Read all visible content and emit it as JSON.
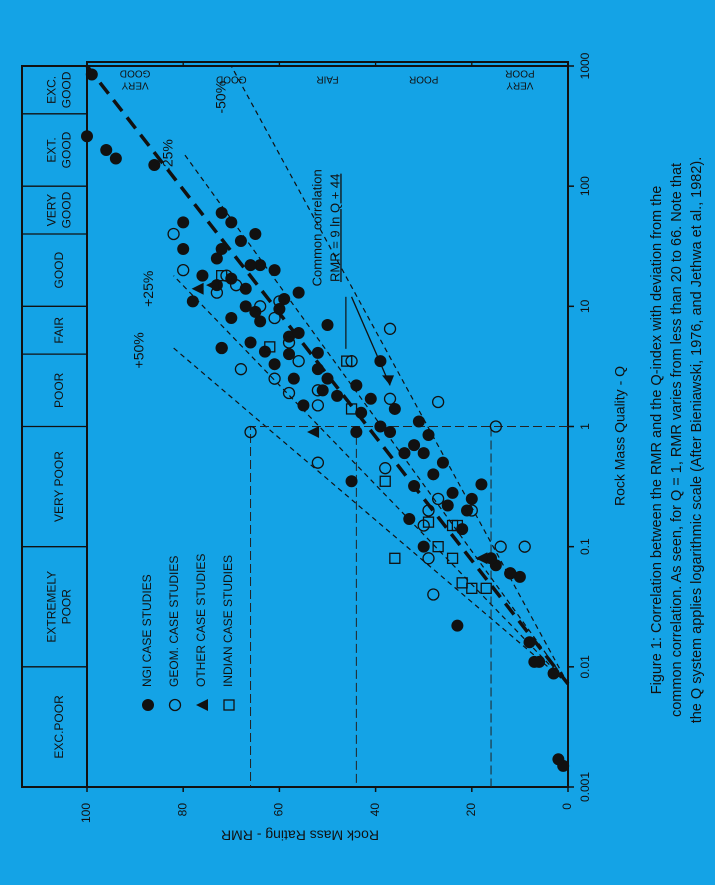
{
  "background": "#14a3e6",
  "caption": [
    "Figure 1:  Correlation between the RMR and the Q-index with deviation from the",
    "common correlation. As seen, for Q = 1, RMR varies from less than 20 to 66. Note that",
    "the Q system applies logarithmic scale (After Bieniawski, 1976, and Jethwa et al., 1982)."
  ],
  "chart_data": {
    "type": "scatter",
    "x_scale": "log",
    "xlabel": "Rock Mass Quality - Q",
    "ylabel": "Rock Mass Rating - RMR",
    "xlim": [
      0.001,
      1000
    ],
    "ylim": [
      0,
      100
    ],
    "x_ticks": [
      {
        "value": 0.001,
        "label": "0.001"
      },
      {
        "value": 0.01,
        "label": "0.01"
      },
      {
        "value": 0.1,
        "label": "0.1"
      },
      {
        "value": 1,
        "label": "1"
      },
      {
        "value": 10,
        "label": "10"
      },
      {
        "value": 100,
        "label": "100"
      },
      {
        "value": 1000,
        "label": "1000"
      }
    ],
    "y_ticks": [
      {
        "value": 0,
        "label": "0"
      },
      {
        "value": 20,
        "label": "20"
      },
      {
        "value": 40,
        "label": "40"
      },
      {
        "value": 60,
        "label": "60"
      },
      {
        "value": 80,
        "label": "80"
      },
      {
        "value": 100,
        "label": "100"
      }
    ],
    "q_classes": [
      {
        "from": 0.001,
        "to": 0.01,
        "label": [
          "EXC.POOR"
        ]
      },
      {
        "from": 0.01,
        "to": 0.1,
        "label": [
          "EXTREMELY",
          "POOR"
        ]
      },
      {
        "from": 0.1,
        "to": 1,
        "label": [
          "VERY POOR"
        ]
      },
      {
        "from": 1,
        "to": 4,
        "label": [
          "POOR"
        ]
      },
      {
        "from": 4,
        "to": 10,
        "label": [
          "FAIR"
        ]
      },
      {
        "from": 10,
        "to": 40,
        "label": [
          "GOOD"
        ]
      },
      {
        "from": 40,
        "to": 100,
        "label": [
          "VERY",
          "GOOD"
        ]
      },
      {
        "from": 100,
        "to": 400,
        "label": [
          "EXT.",
          "GOOD"
        ]
      },
      {
        "from": 400,
        "to": 1000,
        "label": [
          "EXC.",
          "GOOD"
        ]
      }
    ],
    "rmr_classes": [
      {
        "from": 0,
        "to": 20,
        "label": [
          "VERY",
          "POOR"
        ]
      },
      {
        "from": 20,
        "to": 40,
        "label": [
          "POOR"
        ]
      },
      {
        "from": 40,
        "to": 60,
        "label": [
          "FAIR"
        ]
      },
      {
        "from": 60,
        "to": 80,
        "label": [
          "GOOD"
        ]
      },
      {
        "from": 80,
        "to": 100,
        "label": [
          "VERY",
          "GOOD"
        ]
      }
    ],
    "lines": [
      {
        "label": "+50%",
        "points": [
          [
            0.0072,
            0
          ],
          [
            4.5,
            82
          ]
        ],
        "style": "dash-fine"
      },
      {
        "label": "+25%",
        "points": [
          [
            0.0072,
            0
          ],
          [
            18,
            82
          ]
        ],
        "style": "dash-fine"
      },
      {
        "label": "",
        "points": [
          [
            0.0072,
            0
          ],
          [
            1000,
            100
          ]
        ],
        "style": "dash-bold"
      },
      {
        "label": "-25%",
        "points": [
          [
            0.0072,
            0
          ],
          [
            190,
            80
          ]
        ],
        "style": "dash-fine"
      },
      {
        "label": "-50%",
        "points": [
          [
            0.0072,
            0
          ],
          [
            1000,
            70
          ]
        ],
        "style": "dash-fine"
      }
    ],
    "line_labels": [
      {
        "text": "+50%",
        "q": 4.3,
        "rmr": 89
      },
      {
        "text": "+25%",
        "q": 14,
        "rmr": 87
      },
      {
        "text": "-25%",
        "q": 180,
        "rmr": 83
      },
      {
        "text": "-50%",
        "q": 550,
        "rmr": 72
      }
    ],
    "guides": [
      {
        "q": 1,
        "rmr": 66
      },
      {
        "q": 1,
        "rmr": 44
      },
      {
        "q": 1,
        "rmr": 16
      }
    ],
    "correlation": {
      "text": [
        "Common correlation",
        "RMR = 9 ln Q + 44"
      ],
      "label_q": 45,
      "label_rmr": 52,
      "arrow_from": {
        "q": 12,
        "rmr": 45
      },
      "arrow_to": {
        "q": 2.2,
        "rmr": 37
      }
    },
    "legend": {
      "placement": "bottom-left",
      "entries": [
        {
          "marker": "filled-circle",
          "label": "NGI CASE STUDIES"
        },
        {
          "marker": "open-circle",
          "label": "GEOM. CASE STUDIES"
        },
        {
          "marker": "triangle",
          "label": "OTHER CASE STUDIES"
        },
        {
          "marker": "square",
          "label": "INDIAN CASE STUDIES"
        }
      ]
    },
    "series": [
      {
        "name": "NGI CASE STUDIES",
        "marker": "filled-circle",
        "points": [
          [
            0.0015,
            1
          ],
          [
            0.0017,
            2
          ],
          [
            0.0088,
            3
          ],
          [
            0.011,
            6
          ],
          [
            0.011,
            7
          ],
          [
            0.016,
            8
          ],
          [
            0.022,
            23
          ],
          [
            0.056,
            10
          ],
          [
            0.06,
            12
          ],
          [
            0.07,
            15
          ],
          [
            0.08,
            16
          ],
          [
            0.1,
            30
          ],
          [
            0.14,
            22
          ],
          [
            0.17,
            33
          ],
          [
            0.2,
            21
          ],
          [
            0.22,
            25
          ],
          [
            0.25,
            20
          ],
          [
            0.35,
            45
          ],
          [
            0.28,
            24
          ],
          [
            0.32,
            32
          ],
          [
            0.33,
            18
          ],
          [
            0.4,
            28
          ],
          [
            0.5,
            26
          ],
          [
            0.6,
            30
          ],
          [
            0.6,
            34
          ],
          [
            0.7,
            32
          ],
          [
            0.85,
            29
          ],
          [
            0.9,
            37
          ],
          [
            0.9,
            44
          ],
          [
            1.0,
            39
          ],
          [
            1.1,
            31
          ],
          [
            1.3,
            43
          ],
          [
            1.4,
            36
          ],
          [
            1.5,
            55
          ],
          [
            1.7,
            41
          ],
          [
            1.8,
            48
          ],
          [
            2.0,
            51
          ],
          [
            2.2,
            44
          ],
          [
            2.5,
            57
          ],
          [
            2.5,
            50
          ],
          [
            3.0,
            52
          ],
          [
            3.3,
            61
          ],
          [
            3.5,
            39
          ],
          [
            4.0,
            58
          ],
          [
            4.1,
            52
          ],
          [
            4.5,
            72
          ],
          [
            4.2,
            63
          ],
          [
            5.0,
            66
          ],
          [
            5.6,
            58
          ],
          [
            6,
            56
          ],
          [
            7,
            50
          ],
          [
            7.5,
            64
          ],
          [
            8,
            70
          ],
          [
            9,
            65
          ],
          [
            9.5,
            60
          ],
          [
            10,
            67
          ],
          [
            11,
            78
          ],
          [
            11.5,
            59
          ],
          [
            13,
            56
          ],
          [
            14,
            67
          ],
          [
            15,
            73
          ],
          [
            17,
            70
          ],
          [
            18,
            76
          ],
          [
            20,
            61
          ],
          [
            22,
            64
          ],
          [
            22,
            66
          ],
          [
            25,
            73
          ],
          [
            30,
            72
          ],
          [
            30,
            80
          ],
          [
            35,
            68
          ],
          [
            40,
            65
          ],
          [
            50,
            70
          ],
          [
            60,
            72
          ],
          [
            50,
            80
          ],
          [
            150,
            86
          ],
          [
            170,
            94
          ],
          [
            200,
            96
          ],
          [
            260,
            100
          ],
          [
            850,
            99
          ]
        ]
      },
      {
        "name": "GEOM. CASE STUDIES",
        "marker": "open-circle",
        "points": [
          [
            0.04,
            28
          ],
          [
            0.06,
            12
          ],
          [
            0.08,
            29
          ],
          [
            0.1,
            14
          ],
          [
            0.1,
            9
          ],
          [
            0.15,
            30
          ],
          [
            0.2,
            20
          ],
          [
            0.2,
            29
          ],
          [
            0.25,
            27
          ],
          [
            0.45,
            38
          ],
          [
            0.5,
            52
          ],
          [
            0.9,
            66
          ],
          [
            1.0,
            15
          ],
          [
            1.5,
            52
          ],
          [
            1.6,
            27
          ],
          [
            1.7,
            37
          ],
          [
            1.9,
            58
          ],
          [
            2.0,
            52
          ],
          [
            2.5,
            61
          ],
          [
            3.0,
            68
          ],
          [
            3.5,
            56
          ],
          [
            3.5,
            45
          ],
          [
            4.5,
            72
          ],
          [
            5.0,
            58
          ],
          [
            6.5,
            37
          ],
          [
            8,
            61
          ],
          [
            10,
            64
          ],
          [
            11,
            60
          ],
          [
            13,
            73
          ],
          [
            15,
            69
          ],
          [
            18,
            71
          ],
          [
            20,
            80
          ],
          [
            40,
            82
          ]
        ]
      },
      {
        "name": "OTHER CASE STUDIES",
        "marker": "triangle",
        "points": [
          [
            0.08,
            18
          ],
          [
            0.9,
            53
          ],
          [
            14,
            77
          ],
          [
            15,
            74
          ]
        ]
      },
      {
        "name": "INDIAN CASE STUDIES",
        "marker": "square",
        "points": [
          [
            0.045,
            17
          ],
          [
            0.045,
            20
          ],
          [
            0.05,
            22
          ],
          [
            0.08,
            24
          ],
          [
            0.08,
            36
          ],
          [
            0.1,
            27
          ],
          [
            0.15,
            23
          ],
          [
            0.15,
            24
          ],
          [
            0.16,
            29
          ],
          [
            0.35,
            38
          ],
          [
            1.4,
            45
          ],
          [
            3.5,
            46
          ],
          [
            4.6,
            62
          ],
          [
            18,
            72
          ]
        ]
      }
    ]
  }
}
